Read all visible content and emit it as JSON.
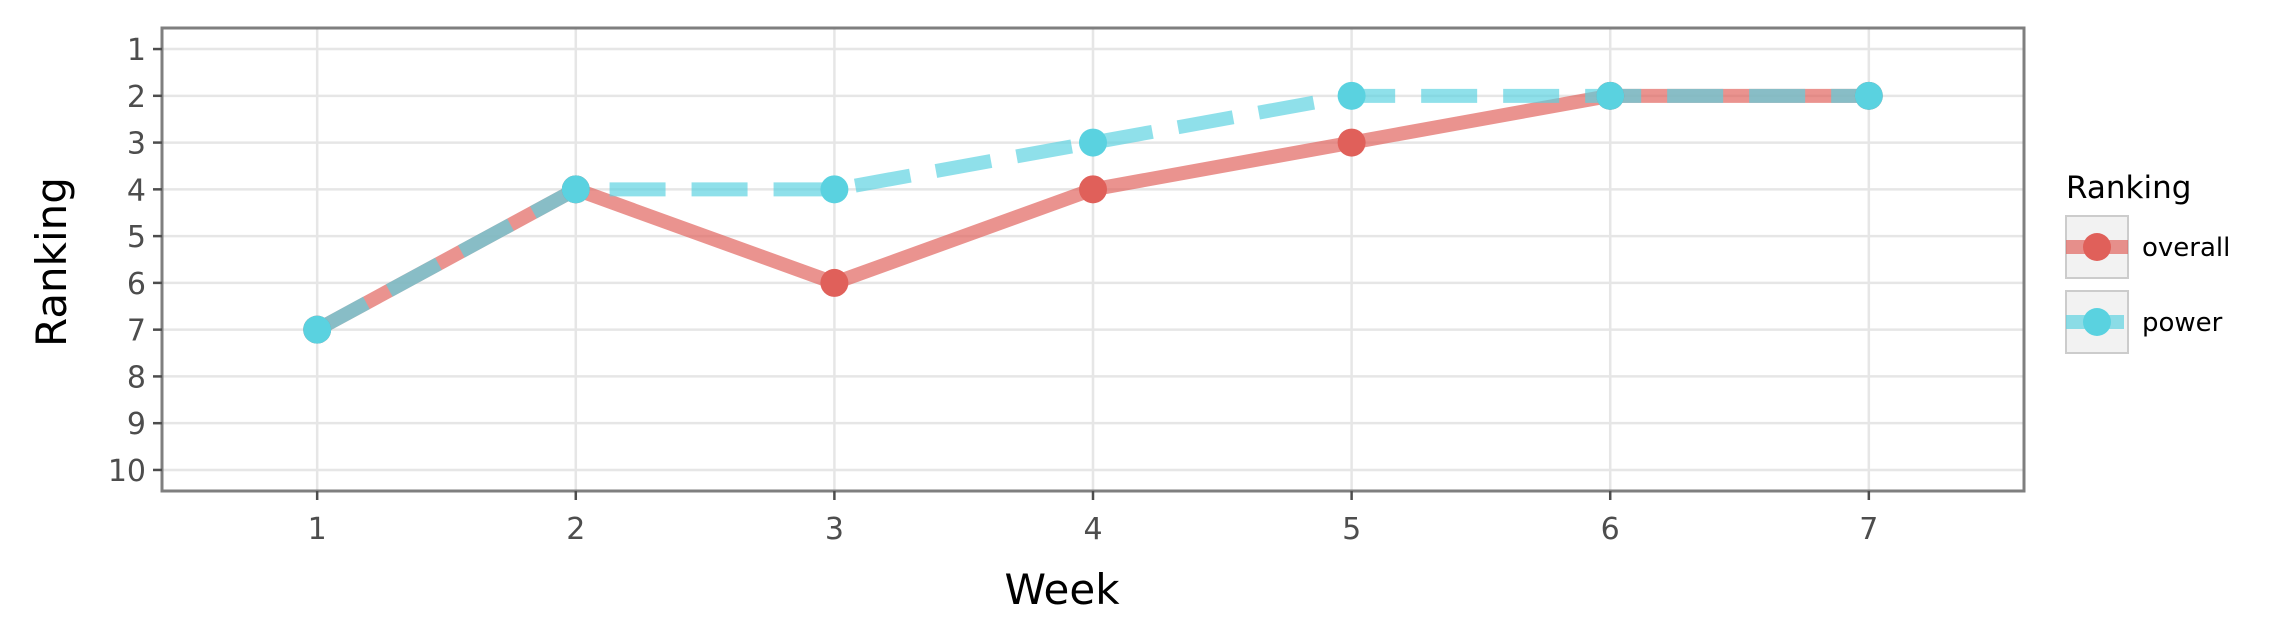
{
  "chart_data": {
    "type": "line",
    "title": "",
    "xlabel": "Week",
    "ylabel": "Ranking",
    "x": [
      1,
      2,
      3,
      4,
      5,
      6,
      7
    ],
    "xticks": [
      "1",
      "2",
      "3",
      "4",
      "5",
      "6",
      "7"
    ],
    "xlim": [
      0.4,
      7.6
    ],
    "yticks": [
      "1",
      "2",
      "3",
      "4",
      "5",
      "6",
      "7",
      "8",
      "9",
      "10"
    ],
    "ylim": [
      10.45,
      0.55
    ],
    "y_reversed": true,
    "grid": true,
    "legend": {
      "title": "Ranking",
      "position": "right"
    },
    "series": [
      {
        "name": "overall",
        "values": [
          7,
          4,
          6,
          4,
          3,
          2,
          2
        ],
        "color": "#e0605a",
        "linestyle": "solid"
      },
      {
        "name": "power",
        "values": [
          7,
          4,
          4,
          3,
          2,
          2,
          2
        ],
        "color": "#5ad2e0",
        "linestyle": "dashed"
      }
    ]
  }
}
